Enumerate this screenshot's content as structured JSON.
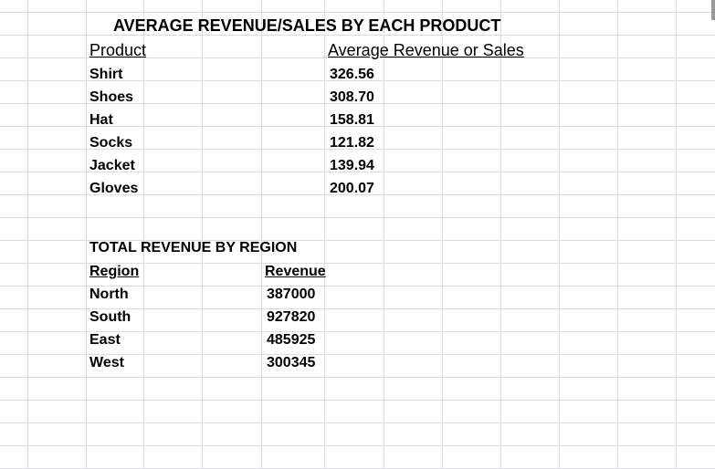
{
  "sheet": {
    "product_table": {
      "title": "AVERAGE REVENUE/SALES BY EACH PRODUCT",
      "headers": [
        "Product",
        "Average Revenue or Sales"
      ],
      "rows": [
        [
          "Shirt",
          "326.56"
        ],
        [
          "Shoes",
          "308.70"
        ],
        [
          "Hat",
          "158.81"
        ],
        [
          "Socks",
          "121.82"
        ],
        [
          "Jacket",
          "139.94"
        ],
        [
          "Gloves",
          "200.07"
        ]
      ]
    },
    "region_table": {
      "title": "TOTAL REVENUE BY REGION",
      "headers": [
        "Region",
        "Revenue"
      ],
      "rows": [
        [
          "North",
          "387000"
        ],
        [
          "South",
          "927820"
        ],
        [
          "East",
          "485925"
        ],
        [
          "West",
          "300345"
        ]
      ]
    }
  },
  "colors": {
    "gridline": "#dadcdf",
    "text": "#000000"
  }
}
